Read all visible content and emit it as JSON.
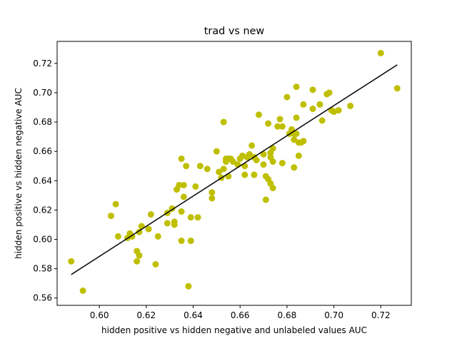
{
  "chart_data": {
    "type": "scatter",
    "title": "trad vs new",
    "xlabel": "hidden positive vs hidden negative and unlabeled values AUC",
    "ylabel": "hidden positive vs hidden negative  AUC",
    "xlim": [
      0.582,
      0.733
    ],
    "ylim": [
      0.555,
      0.735
    ],
    "xticks": [
      0.6,
      0.62,
      0.64,
      0.66,
      0.68,
      0.7,
      0.72
    ],
    "xtick_labels": [
      "0.60",
      "0.62",
      "0.64",
      "0.66",
      "0.68",
      "0.70",
      "0.72"
    ],
    "yticks": [
      0.56,
      0.58,
      0.6,
      0.62,
      0.64,
      0.66,
      0.68,
      0.7,
      0.72
    ],
    "ytick_labels": [
      "0.56",
      "0.58",
      "0.60",
      "0.62",
      "0.64",
      "0.66",
      "0.68",
      "0.70",
      "0.72"
    ],
    "grid": false,
    "point_color": "#bfbf00",
    "line_color": "#000000",
    "fit_line": {
      "x": [
        0.588,
        0.727
      ],
      "y": [
        0.576,
        0.719
      ]
    },
    "points": [
      [
        0.588,
        0.585
      ],
      [
        0.593,
        0.565
      ],
      [
        0.605,
        0.616
      ],
      [
        0.607,
        0.624
      ],
      [
        0.608,
        0.602
      ],
      [
        0.612,
        0.601
      ],
      [
        0.613,
        0.604
      ],
      [
        0.614,
        0.602
      ],
      [
        0.616,
        0.592
      ],
      [
        0.616,
        0.585
      ],
      [
        0.617,
        0.589
      ],
      [
        0.617,
        0.605
      ],
      [
        0.618,
        0.609
      ],
      [
        0.621,
        0.607
      ],
      [
        0.622,
        0.617
      ],
      [
        0.624,
        0.583
      ],
      [
        0.625,
        0.602
      ],
      [
        0.629,
        0.618
      ],
      [
        0.629,
        0.611
      ],
      [
        0.631,
        0.621
      ],
      [
        0.632,
        0.61
      ],
      [
        0.632,
        0.612
      ],
      [
        0.633,
        0.634
      ],
      [
        0.634,
        0.637
      ],
      [
        0.635,
        0.655
      ],
      [
        0.635,
        0.619
      ],
      [
        0.635,
        0.599
      ],
      [
        0.636,
        0.629
      ],
      [
        0.636,
        0.637
      ],
      [
        0.637,
        0.65
      ],
      [
        0.638,
        0.568
      ],
      [
        0.639,
        0.615
      ],
      [
        0.639,
        0.599
      ],
      [
        0.641,
        0.636
      ],
      [
        0.642,
        0.615
      ],
      [
        0.643,
        0.65
      ],
      [
        0.646,
        0.648
      ],
      [
        0.648,
        0.628
      ],
      [
        0.648,
        0.632
      ],
      [
        0.65,
        0.66
      ],
      [
        0.651,
        0.646
      ],
      [
        0.652,
        0.642
      ],
      [
        0.653,
        0.68
      ],
      [
        0.653,
        0.648
      ],
      [
        0.654,
        0.655
      ],
      [
        0.654,
        0.653
      ],
      [
        0.655,
        0.655
      ],
      [
        0.655,
        0.643
      ],
      [
        0.656,
        0.655
      ],
      [
        0.657,
        0.653
      ],
      [
        0.659,
        0.651
      ],
      [
        0.66,
        0.655
      ],
      [
        0.661,
        0.657
      ],
      [
        0.662,
        0.65
      ],
      [
        0.662,
        0.644
      ],
      [
        0.663,
        0.656
      ],
      [
        0.664,
        0.658
      ],
      [
        0.665,
        0.664
      ],
      [
        0.666,
        0.656
      ],
      [
        0.666,
        0.644
      ],
      [
        0.667,
        0.654
      ],
      [
        0.668,
        0.685
      ],
      [
        0.67,
        0.651
      ],
      [
        0.67,
        0.658
      ],
      [
        0.671,
        0.643
      ],
      [
        0.671,
        0.627
      ],
      [
        0.672,
        0.641
      ],
      [
        0.672,
        0.679
      ],
      [
        0.673,
        0.638
      ],
      [
        0.673,
        0.656
      ],
      [
        0.673,
        0.659
      ],
      [
        0.674,
        0.635
      ],
      [
        0.674,
        0.662
      ],
      [
        0.674,
        0.653
      ],
      [
        0.676,
        0.677
      ],
      [
        0.677,
        0.682
      ],
      [
        0.678,
        0.677
      ],
      [
        0.678,
        0.652
      ],
      [
        0.68,
        0.697
      ],
      [
        0.681,
        0.672
      ],
      [
        0.682,
        0.675
      ],
      [
        0.683,
        0.672
      ],
      [
        0.683,
        0.668
      ],
      [
        0.683,
        0.649
      ],
      [
        0.684,
        0.683
      ],
      [
        0.684,
        0.704
      ],
      [
        0.684,
        0.672
      ],
      [
        0.685,
        0.657
      ],
      [
        0.685,
        0.666
      ],
      [
        0.686,
        0.666
      ],
      [
        0.687,
        0.692
      ],
      [
        0.687,
        0.667
      ],
      [
        0.691,
        0.702
      ],
      [
        0.691,
        0.689
      ],
      [
        0.694,
        0.692
      ],
      [
        0.695,
        0.681
      ],
      [
        0.697,
        0.699
      ],
      [
        0.698,
        0.7
      ],
      [
        0.699,
        0.688
      ],
      [
        0.7,
        0.687
      ],
      [
        0.702,
        0.688
      ],
      [
        0.707,
        0.691
      ],
      [
        0.72,
        0.727
      ],
      [
        0.727,
        0.703
      ]
    ]
  }
}
